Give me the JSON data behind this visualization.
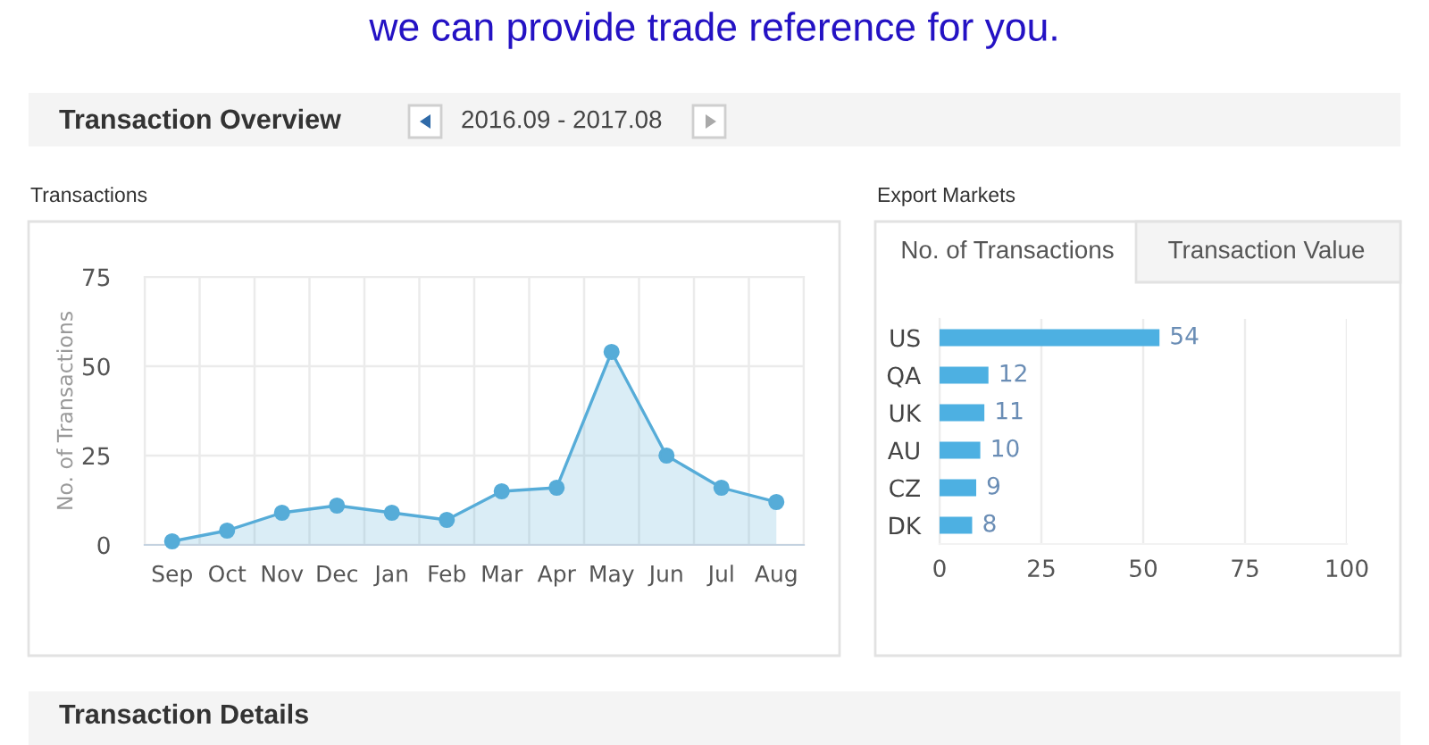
{
  "chart_data": [
    {
      "type": "other",
      "title": "Transaction Overview",
      "annotations": [
        "we can provide trade reference for you.",
        "2016.09 - 2017.08"
      ]
    },
    {
      "type": "area",
      "title": "Transactions",
      "ylabel": "No. of Transactions",
      "categories": [
        "Sep",
        "Oct",
        "Nov",
        "Dec",
        "Jan",
        "Feb",
        "Mar",
        "Apr",
        "May",
        "Jun",
        "Jul",
        "Aug"
      ],
      "values": [
        1,
        4,
        9,
        11,
        9,
        7,
        15,
        16,
        54,
        25,
        16,
        12
      ],
      "color": "#56acd8",
      "marker": "circle",
      "ylim": [
        0,
        75
      ],
      "yticks": [
        0,
        25,
        50,
        75
      ],
      "grid": true
    },
    {
      "type": "bar",
      "orientation": "horizontal",
      "title": "Export Markets",
      "annotations": [
        "No. of Transactions",
        "Transaction Value"
      ],
      "categories": [
        "US",
        "QA",
        "UK",
        "AU",
        "CZ",
        "DK"
      ],
      "values": [
        54,
        12,
        11,
        10,
        9,
        8
      ],
      "color": "#4db0e2",
      "data_labels": true,
      "xlim": [
        0,
        100
      ],
      "xticks": [
        0,
        25,
        50,
        75,
        100
      ],
      "grid": "x"
    },
    {
      "type": "other",
      "title": "Transaction Details"
    }
  ]
}
